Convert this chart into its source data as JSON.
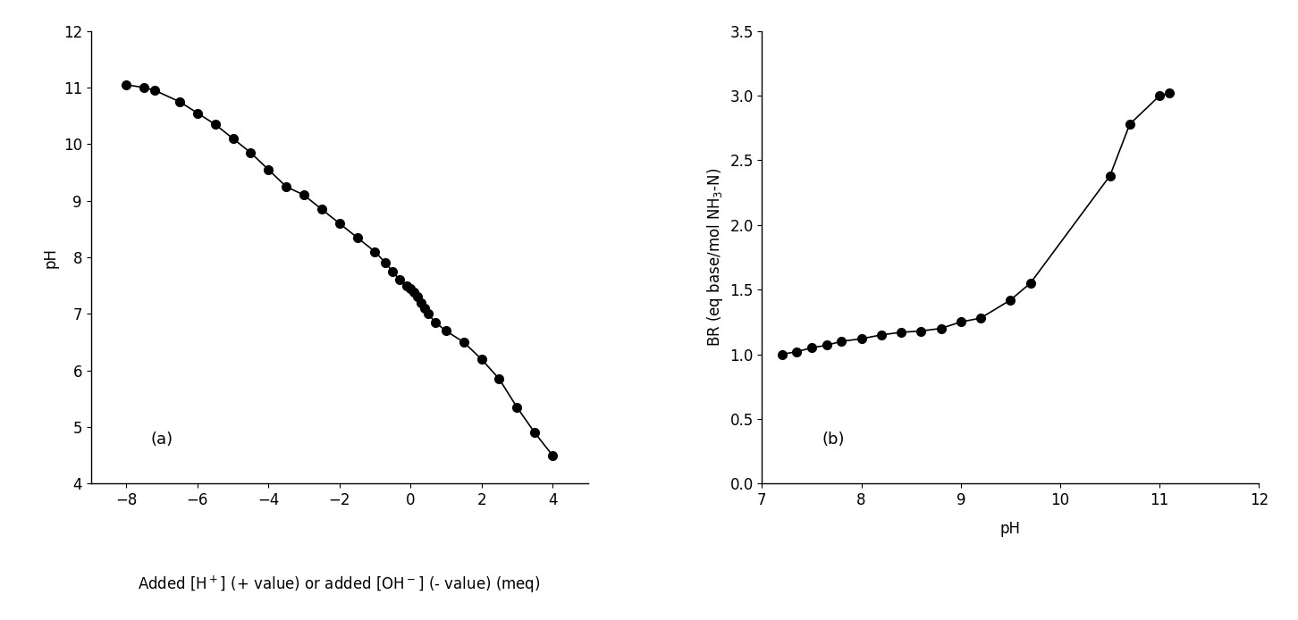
{
  "plot_a": {
    "x": [
      -8.0,
      -7.5,
      -7.2,
      -6.5,
      -6.0,
      -5.5,
      -5.0,
      -4.5,
      -4.0,
      -3.5,
      -3.0,
      -2.5,
      -2.0,
      -1.5,
      -1.0,
      -0.7,
      -0.5,
      -0.3,
      -0.1,
      0.0,
      0.1,
      0.2,
      0.3,
      0.4,
      0.5,
      0.7,
      1.0,
      1.5,
      2.0,
      2.5,
      3.0,
      3.5,
      4.0
    ],
    "y": [
      11.05,
      11.0,
      10.95,
      10.75,
      10.55,
      10.35,
      10.1,
      9.85,
      9.55,
      9.25,
      9.1,
      8.85,
      8.6,
      8.35,
      8.1,
      7.9,
      7.75,
      7.6,
      7.5,
      7.45,
      7.38,
      7.3,
      7.2,
      7.1,
      7.0,
      6.85,
      6.7,
      6.5,
      6.2,
      5.85,
      5.35,
      4.9,
      4.5
    ],
    "xlabel": "Added [H+] (+ value) or added [OH-] (- value) (meq)",
    "ylabel": "pH",
    "xlim": [
      -9,
      5
    ],
    "ylim": [
      4,
      12
    ],
    "xticks": [
      -8,
      -6,
      -4,
      -2,
      0,
      2,
      4
    ],
    "yticks": [
      4,
      5,
      6,
      7,
      8,
      9,
      10,
      11,
      12
    ],
    "label": "(a)"
  },
  "plot_b": {
    "x": [
      7.2,
      7.35,
      7.5,
      7.65,
      7.8,
      8.0,
      8.2,
      8.4,
      8.6,
      8.8,
      9.0,
      9.2,
      9.5,
      9.7,
      10.5,
      10.7,
      11.0,
      11.1
    ],
    "y": [
      1.0,
      1.02,
      1.05,
      1.07,
      1.1,
      1.12,
      1.15,
      1.17,
      1.18,
      1.2,
      1.25,
      1.28,
      1.42,
      1.55,
      2.38,
      2.78,
      3.0,
      3.02
    ],
    "xlabel": "pH",
    "ylabel": "BR (eq base/mol NH3-N)",
    "xlim": [
      7,
      12
    ],
    "ylim": [
      0.0,
      3.5
    ],
    "xticks": [
      7,
      8,
      9,
      10,
      11,
      12
    ],
    "yticks": [
      0.0,
      0.5,
      1.0,
      1.5,
      2.0,
      2.5,
      3.0,
      3.5
    ],
    "label": "(b)"
  },
  "line_color": "#000000",
  "marker_color": "#000000",
  "marker_size": 7,
  "line_width": 1.2,
  "background_color": "#ffffff",
  "font_size": 12,
  "label_font_size": 12,
  "fig_xlabel_a": "Added [H$^+$] (+ value) or added [OH$^-$] (- value) (meq)"
}
